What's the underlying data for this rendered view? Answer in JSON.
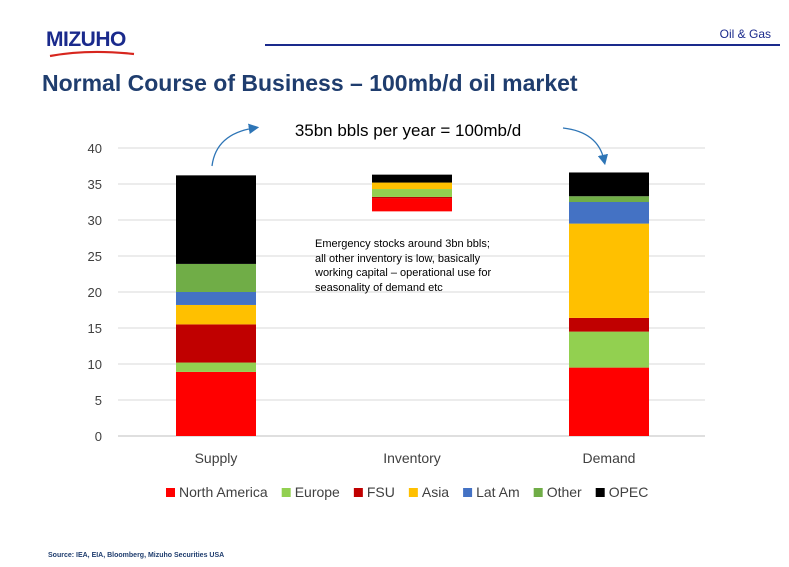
{
  "header": {
    "logo_text": "MIZUHO",
    "section": "Oil & Gas",
    "title": "Normal Course of Business – 100mb/d oil market"
  },
  "colors": {
    "North America": "#ff0000",
    "Europe": "#92d050",
    "FSU": "#c00000",
    "Asia": "#ffc000",
    "Lat Am": "#4472c4",
    "Other": "#70ad47",
    "OPEC": "#000000",
    "brand": "#1a2a8c",
    "title": "#1f3d6e"
  },
  "chart_data": {
    "type": "bar",
    "stacked": true,
    "categories": [
      "Supply",
      "Inventory",
      "Demand"
    ],
    "ylim": [
      0,
      40
    ],
    "yticks": [
      0,
      5,
      10,
      15,
      20,
      25,
      30,
      35,
      40
    ],
    "grid": true,
    "legend_position": "bottom",
    "series": [
      {
        "name": "North America",
        "values": [
          8.9,
          0,
          9.5
        ]
      },
      {
        "name": "Europe",
        "values": [
          1.3,
          0,
          5.0
        ]
      },
      {
        "name": "FSU",
        "values": [
          5.3,
          0,
          1.9
        ]
      },
      {
        "name": "Asia",
        "values": [
          2.7,
          0,
          13.1
        ]
      },
      {
        "name": "Lat Am",
        "values": [
          1.8,
          0,
          3.0
        ]
      },
      {
        "name": "Other",
        "values": [
          3.9,
          0,
          0.8
        ]
      },
      {
        "name": "OPEC",
        "values": [
          12.3,
          0,
          3.3
        ]
      }
    ],
    "inventory_segments": [
      {
        "name": "North America",
        "from": 31.2,
        "to": 33.0
      },
      {
        "name": "FSU",
        "from": 33.0,
        "to": 33.2
      },
      {
        "name": "Europe",
        "from": 33.2,
        "to": 34.3
      },
      {
        "name": "Asia",
        "from": 34.3,
        "to": 35.2
      },
      {
        "name": "OPEC",
        "from": 35.2,
        "to": 36.3
      }
    ],
    "annotations": {
      "top_label": "35bn bbls per year = 100mb/d",
      "note_lines": [
        "Emergency stocks around 3bn bbls;",
        "all other inventory is low, basically",
        "working capital – operational use for",
        "seasonality of demand etc"
      ]
    }
  },
  "footer": {
    "source": "Source: IEA, EIA, Bloomberg, Mizuho Securities USA"
  }
}
